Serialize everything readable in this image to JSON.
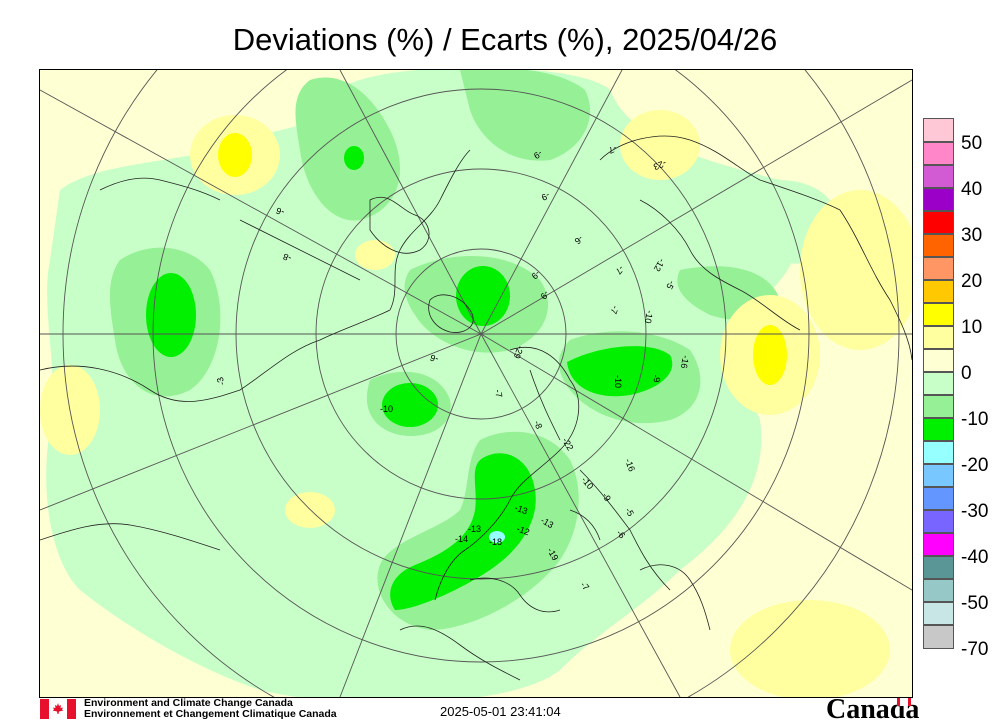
{
  "title": "Deviations (%) / Ecarts (%), 2025/04/26",
  "legend": {
    "labels": [
      "50",
      "40",
      "30",
      "20",
      "10",
      "0",
      "-10",
      "-20",
      "-30",
      "-40",
      "-50",
      "-70"
    ],
    "colors": [
      "#ffc8d6",
      "#ff86c8",
      "#d25ad2",
      "#9a00c8",
      "#ff0000",
      "#ff6400",
      "#ff9664",
      "#ffc800",
      "#ffff00",
      "#ffffa0",
      "#feffd2",
      "#c8ffc8",
      "#96f096",
      "#00f000",
      "#96ffff",
      "#78c8ff",
      "#6496ff",
      "#7864ff",
      "#ff00ff",
      "#5a9696",
      "#96c8c8",
      "#c8e6e6",
      "#c8c8c8"
    ]
  },
  "station_values": [
    "-9",
    "-7",
    "-23",
    "-6",
    "-9",
    "-8",
    "-6",
    "-9",
    "-7",
    "-9",
    "-5",
    "-12",
    "-7",
    "-10",
    "-16",
    "-10",
    "-9",
    "-29",
    "-6",
    "-7",
    "-3",
    "-10",
    "-8",
    "-22",
    "-16",
    "-10",
    "-9",
    "-5",
    "-6",
    "-13",
    "-13",
    "-14",
    "-18",
    "-12",
    "-13",
    "-19",
    "-7"
  ],
  "footer": {
    "org_en": "Environment and Climate Change Canada",
    "org_fr": "Environnement et Changement Climatique Canada",
    "timestamp": "2025-05-01 23:41:04",
    "wordmark": "Canada"
  }
}
